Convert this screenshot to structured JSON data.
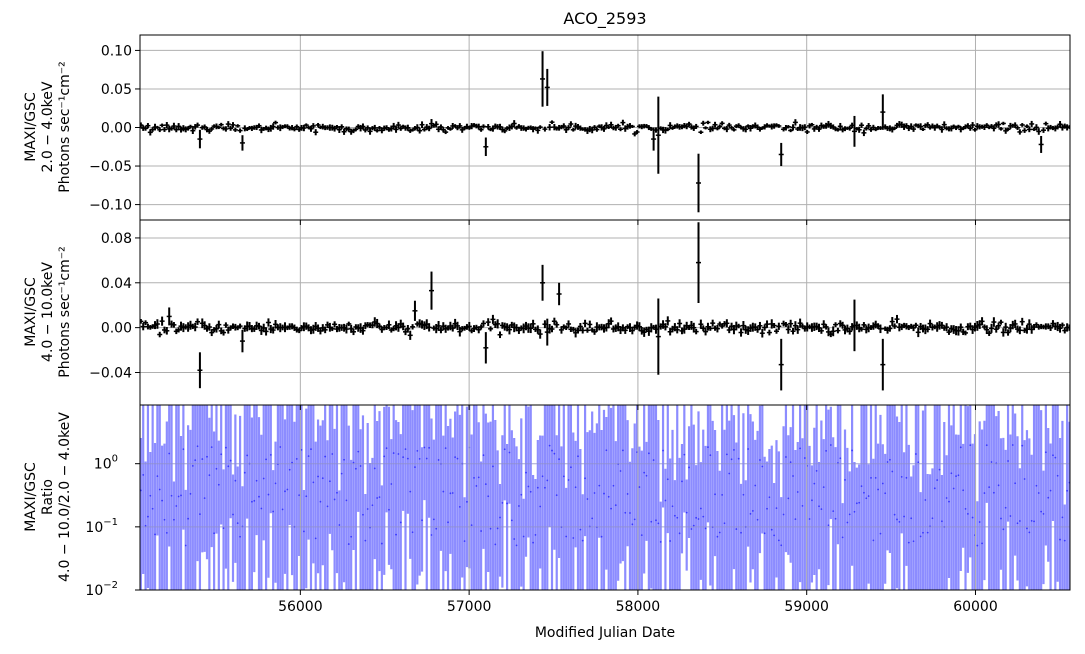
{
  "chart_data": [
    {
      "type": "scatter",
      "title": "ACO_2593",
      "ylabel_lines": [
        "MAXI/GSC",
        "2.0 − 4.0keV",
        "Photons sec⁻¹cm⁻²"
      ],
      "xlim": [
        55050,
        60560
      ],
      "ylim": [
        -0.12,
        0.12
      ],
      "yticks": [
        -0.1,
        -0.05,
        0.0,
        0.05,
        0.1
      ],
      "ytick_labels": [
        "−0.10",
        "−0.05",
        "0.00",
        "0.05",
        "0.10"
      ],
      "xticks": [
        56000,
        57000,
        58000,
        59000,
        60000
      ],
      "grid": true,
      "series_color": "#000000",
      "bin_days": 14,
      "noise_sigma": 0.004,
      "notable_errorbars": [
        {
          "x": 55400,
          "y": -0.015,
          "err": 0.012
        },
        {
          "x": 55650,
          "y": -0.02,
          "err": 0.01
        },
        {
          "x": 56770,
          "y": 0.005,
          "err": 0.006
        },
        {
          "x": 57090,
          "y": -0.025,
          "err": 0.012
        },
        {
          "x": 57430,
          "y": 0.063,
          "err": 0.036
        },
        {
          "x": 57460,
          "y": 0.052,
          "err": 0.024
        },
        {
          "x": 58090,
          "y": -0.015,
          "err": 0.015
        },
        {
          "x": 58120,
          "y": -0.01,
          "err": 0.05
        },
        {
          "x": 58350,
          "y": -0.072,
          "err": 0.038
        },
        {
          "x": 58850,
          "y": -0.035,
          "err": 0.015
        },
        {
          "x": 59280,
          "y": -0.005,
          "err": 0.02
        },
        {
          "x": 59450,
          "y": 0.02,
          "err": 0.023
        },
        {
          "x": 60380,
          "y": -0.022,
          "err": 0.011
        }
      ]
    },
    {
      "type": "scatter",
      "ylabel_lines": [
        "MAXI/GSC",
        "4.0 − 10.0keV",
        "Photons sec⁻¹cm⁻²"
      ],
      "xlim": [
        55050,
        60560
      ],
      "ylim": [
        -0.069,
        0.096
      ],
      "yticks": [
        -0.04,
        0.0,
        0.04,
        0.08
      ],
      "ytick_labels": [
        "−0.04",
        "0.00",
        "0.04",
        "0.08"
      ],
      "xticks": [
        56000,
        57000,
        58000,
        59000,
        60000
      ],
      "grid": true,
      "series_color": "#000000",
      "bin_days": 14,
      "noise_sigma": 0.004,
      "notable_errorbars": [
        {
          "x": 55220,
          "y": 0.01,
          "err": 0.008
        },
        {
          "x": 55400,
          "y": -0.038,
          "err": 0.016
        },
        {
          "x": 55650,
          "y": -0.012,
          "err": 0.01
        },
        {
          "x": 56670,
          "y": 0.015,
          "err": 0.009
        },
        {
          "x": 56770,
          "y": 0.033,
          "err": 0.017
        },
        {
          "x": 57090,
          "y": -0.018,
          "err": 0.014
        },
        {
          "x": 57430,
          "y": 0.04,
          "err": 0.016
        },
        {
          "x": 57460,
          "y": -0.004,
          "err": 0.012
        },
        {
          "x": 57530,
          "y": 0.03,
          "err": 0.01
        },
        {
          "x": 58120,
          "y": -0.008,
          "err": 0.034
        },
        {
          "x": 58350,
          "y": 0.058,
          "err": 0.036
        },
        {
          "x": 58850,
          "y": -0.033,
          "err": 0.023
        },
        {
          "x": 59280,
          "y": 0.002,
          "err": 0.023
        },
        {
          "x": 59450,
          "y": -0.033,
          "err": 0.023
        }
      ]
    },
    {
      "type": "scatter",
      "ylabel_lines": [
        "MAXI/GSC",
        "Ratio",
        "4.0 − 10.0/2.0 − 4.0keV"
      ],
      "xlabel": "Modified Julian Date",
      "xlim": [
        55050,
        60560
      ],
      "yscale": "log",
      "ylim": [
        0.01,
        8.5
      ],
      "yticks": [
        0.01,
        0.1,
        1
      ],
      "ytick_labels": [
        "10",
        "10",
        "10"
      ],
      "ytick_exponents": [
        "−2",
        "−1",
        "0"
      ],
      "xticks": [
        56000,
        57000,
        58000,
        59000,
        60000
      ],
      "xtick_labels": [
        "56000",
        "57000",
        "58000",
        "59000",
        "60000"
      ],
      "grid": true,
      "series_color": "#0000ff",
      "bin_days": 14
    }
  ]
}
